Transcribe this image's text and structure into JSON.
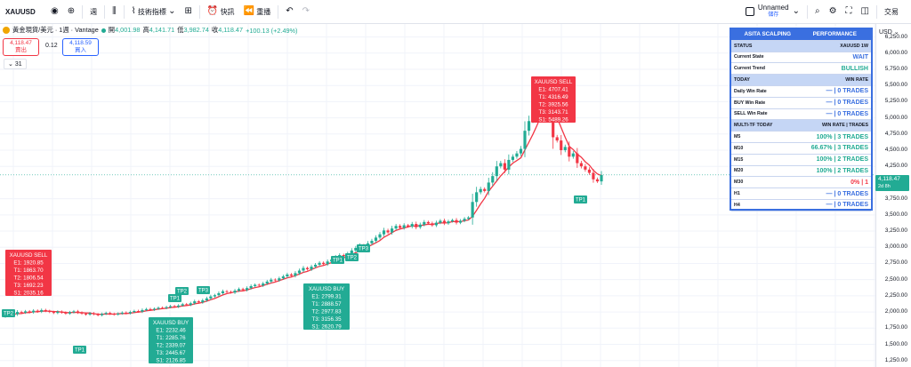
{
  "toolbar": {
    "symbol": "XAUUSD",
    "interval": "週",
    "indicators_label": "技術指標",
    "quick_label": "快訊",
    "replay_label": "重播",
    "layout_name": "Unnamed",
    "layout_sub": "儲存",
    "trade_label": "交易",
    "icons": [
      "circle-eye-icon",
      "add-icon",
      "candles-icon",
      "indicators-icon",
      "templates-icon",
      "alert-icon",
      "replay-icon",
      "undo-icon",
      "redo-icon",
      "search-icon",
      "settings-icon",
      "fullscreen-icon",
      "camera-icon"
    ]
  },
  "legend": {
    "title": "黃金現貨/美元 · 1週 · Vantage",
    "o_label": "開",
    "o": "4,001.98",
    "h_label": "高",
    "h": "4,141.71",
    "l_label": "低",
    "l": "3,982.74",
    "c_label": "收",
    "c": "4,118.47",
    "change": "+100.13 (+2.49%)"
  },
  "order": {
    "sell_price": "4,118.47",
    "sell_label": "賣出",
    "spread": "0.12",
    "buy_price": "4,118.59",
    "buy_label": "買入",
    "indicator_count": "31"
  },
  "axis": {
    "currency": "USD",
    "ticks": [
      "6,250.00",
      "6,000.00",
      "5,750.00",
      "5,500.00",
      "5,250.00",
      "5,000.00",
      "4,750.00",
      "4,500.00",
      "4,250.00",
      "3,750.00",
      "3,500.00",
      "3,250.00",
      "3,000.00",
      "2,750.00",
      "2,500.00",
      "2,250.00",
      "2,000.00",
      "1,750.00",
      "1,500.00",
      "1,250.00"
    ],
    "tick_values": [
      6250,
      6000,
      5750,
      5500,
      5250,
      5000,
      4750,
      4500,
      4250,
      3750,
      3500,
      3250,
      3000,
      2750,
      2500,
      2250,
      2000,
      1750,
      1500,
      1250
    ],
    "current_price": "4,118.47",
    "countdown": "2d 8h"
  },
  "panel": {
    "title": "ASITA SCALPING",
    "title_right": "PERFORMANCE",
    "status_label": "STATUS",
    "status_value": "XAUUSD  1W",
    "current_state_label": "Current State",
    "current_state": "WAIT",
    "current_trend_label": "Current Trend",
    "current_trend": "BULLISH",
    "today_label": "TODAY",
    "today_right": "WIN RATE",
    "daily_label": "Daily Win Rate",
    "daily_value": "— | 0 TRADES",
    "buy_label": "BUY Win Rate",
    "buy_value": "— | 0 TRADES",
    "sell_label": "SELL Win Rate",
    "sell_value": "— | 0 TRADES",
    "multi_label": "MULTI-TF TODAY",
    "multi_right": "WIN RATE | TRADES",
    "tf": [
      {
        "tf": "M5",
        "value": "100% | 3 TRADES",
        "color": "green"
      },
      {
        "tf": "M10",
        "value": "66.67% | 3 TRADES",
        "color": "green"
      },
      {
        "tf": "M15",
        "value": "100% | 2 TRADES",
        "color": "green"
      },
      {
        "tf": "M20",
        "value": "100% | 2 TRADES",
        "color": "green"
      },
      {
        "tf": "M30",
        "value": "0% | 1",
        "color": "red"
      },
      {
        "tf": "H1",
        "value": "— | 0 TRADES",
        "color": "gray"
      },
      {
        "tf": "H4",
        "value": "— | 0 TRADES",
        "color": "gray"
      }
    ],
    "m30_flag": "XAUUSD"
  },
  "signals": [
    {
      "type": "sell",
      "lines": [
        "XAUUSD SELL",
        "E1: 1920.85",
        "T1: 1863.70",
        "T2: 1806.54",
        "T3: 1692.23",
        "S1: 2035.16"
      ]
    },
    {
      "type": "buy",
      "lines": [
        "XAUUSD BUY",
        "E1: 2232.46",
        "T1: 2285.76",
        "T2: 2339.07",
        "T3: 2445.67",
        "S1: 2126.85"
      ]
    },
    {
      "type": "buy",
      "lines": [
        "XAUUSD BUY",
        "E1: 2799.31",
        "T1: 2888.57",
        "T2: 2977.83",
        "T3: 3156.35",
        "S1: 2620.79"
      ]
    },
    {
      "type": "sell",
      "lines": [
        "XAUUSD SELL",
        "E1: 4707.41",
        "T1: 4316.49",
        "T2: 3925.56",
        "T3: 3143.71",
        "S1: 5489.26"
      ]
    }
  ],
  "tp_labels": [
    "TP1",
    "TP1",
    "TP2",
    "TP3",
    "TP1",
    "TP2",
    "TP3",
    "TP1"
  ],
  "colors": {
    "up": "#22ab94",
    "down": "#f23645",
    "panel": "#3a6fe0",
    "ma": "#f23645",
    "ma_blue": "#5b8def"
  },
  "chart_data": {
    "type": "candlestick",
    "ylim": [
      1150,
      6450
    ],
    "closes": [
      1950,
      1980,
      1965,
      2000,
      1990,
      2010,
      1995,
      2020,
      2005,
      2030,
      2015,
      2000,
      1985,
      2005,
      1990,
      1975,
      1995,
      2010,
      1990,
      1975,
      1960,
      1980,
      1965,
      1950,
      1970,
      1985,
      1970,
      1960,
      1975,
      1990,
      1980,
      2000,
      2015,
      2005,
      2030,
      2045,
      2035,
      2050,
      2065,
      2060,
      2075,
      2090,
      2080,
      2100,
      2120,
      2110,
      2135,
      2165,
      2150,
      2180,
      2210,
      2240,
      2260,
      2290,
      2320,
      2310,
      2300,
      2330,
      2355,
      2340,
      2370,
      2400,
      2420,
      2410,
      2440,
      2470,
      2500,
      2490,
      2520,
      2550,
      2580,
      2560,
      2600,
      2640,
      2680,
      2660,
      2700,
      2730,
      2760,
      2740,
      2780,
      2810,
      2850,
      2880,
      2860,
      2900,
      2950,
      2990,
      3030,
      3010,
      3060,
      3100,
      3150,
      3200,
      3260,
      3230,
      3290,
      3330,
      3300,
      3340,
      3320,
      3360,
      3310,
      3350,
      3390,
      3370,
      3340,
      3380,
      3410,
      3370,
      3400,
      3420,
      3380,
      3410,
      3440,
      3460,
      3700,
      3850,
      3900,
      3870,
      4000,
      4100,
      4250,
      4300,
      4200,
      4350,
      4400,
      4450,
      4520,
      4800,
      4950,
      5000,
      5150,
      5250,
      5300,
      5100,
      4700,
      4650,
      4500,
      4550,
      4400,
      4450,
      4300,
      4250,
      4200,
      4150,
      4050,
      4018,
      4118
    ]
  }
}
